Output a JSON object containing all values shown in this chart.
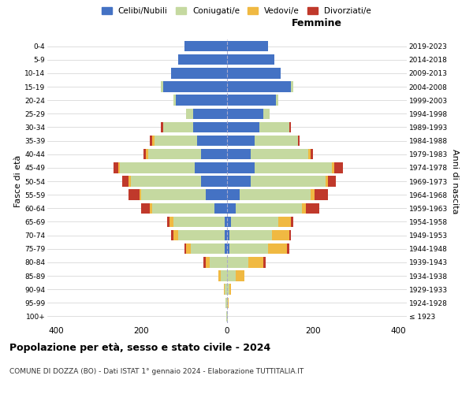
{
  "age_groups": [
    "100+",
    "95-99",
    "90-94",
    "85-89",
    "80-84",
    "75-79",
    "70-74",
    "65-69",
    "60-64",
    "55-59",
    "50-54",
    "45-49",
    "40-44",
    "35-39",
    "30-34",
    "25-29",
    "20-24",
    "15-19",
    "10-14",
    "5-9",
    "0-4"
  ],
  "birth_years": [
    "≤ 1923",
    "1924-1928",
    "1929-1933",
    "1934-1938",
    "1939-1943",
    "1944-1948",
    "1949-1953",
    "1954-1958",
    "1959-1963",
    "1964-1968",
    "1969-1973",
    "1974-1978",
    "1979-1983",
    "1984-1988",
    "1989-1993",
    "1994-1998",
    "1999-2003",
    "2004-2008",
    "2009-2013",
    "2014-2018",
    "2019-2023"
  ],
  "males": {
    "celibi": [
      0,
      0,
      0,
      0,
      0,
      5,
      5,
      5,
      30,
      50,
      60,
      75,
      60,
      70,
      80,
      80,
      120,
      150,
      130,
      115,
      100
    ],
    "coniugati": [
      1,
      3,
      5,
      15,
      40,
      80,
      110,
      120,
      145,
      150,
      165,
      175,
      125,
      100,
      70,
      15,
      5,
      5,
      0,
      0,
      0
    ],
    "vedovi": [
      0,
      0,
      2,
      5,
      10,
      10,
      10,
      10,
      5,
      5,
      5,
      5,
      5,
      5,
      0,
      0,
      0,
      0,
      0,
      0,
      0
    ],
    "divorziati": [
      0,
      0,
      0,
      0,
      5,
      5,
      5,
      5,
      20,
      25,
      15,
      10,
      5,
      5,
      5,
      0,
      0,
      0,
      0,
      0,
      0
    ]
  },
  "females": {
    "nubili": [
      0,
      0,
      0,
      0,
      0,
      5,
      5,
      10,
      20,
      30,
      55,
      65,
      55,
      65,
      75,
      85,
      115,
      150,
      125,
      110,
      95
    ],
    "coniugate": [
      1,
      2,
      5,
      20,
      50,
      90,
      100,
      110,
      155,
      165,
      175,
      180,
      135,
      100,
      70,
      15,
      5,
      5,
      0,
      0,
      0
    ],
    "vedove": [
      0,
      2,
      5,
      20,
      35,
      45,
      40,
      30,
      10,
      10,
      5,
      5,
      5,
      0,
      0,
      0,
      0,
      0,
      0,
      0,
      0
    ],
    "divorziate": [
      0,
      0,
      0,
      0,
      5,
      5,
      5,
      5,
      30,
      30,
      20,
      20,
      5,
      5,
      5,
      0,
      0,
      0,
      0,
      0,
      0
    ]
  },
  "colors": {
    "celibi": "#4472c4",
    "coniugati": "#c5d9a0",
    "vedovi": "#f0b942",
    "divorziati": "#c0392b"
  },
  "title": "Popolazione per età, sesso e stato civile - 2024",
  "subtitle": "COMUNE DI DOZZA (BO) - Dati ISTAT 1° gennaio 2024 - Elaborazione TUTTITALIA.IT",
  "ylabel_left": "Fasce di età",
  "ylabel_right": "Anni di nascita",
  "xlabel_right": "Femmine",
  "xlim": 420,
  "background": "#ffffff",
  "grid_color": "#d0d0d0",
  "legend_labels": [
    "Celibi/Nubili",
    "Coniugati/e",
    "Vedovi/e",
    "Divorziati/e"
  ]
}
